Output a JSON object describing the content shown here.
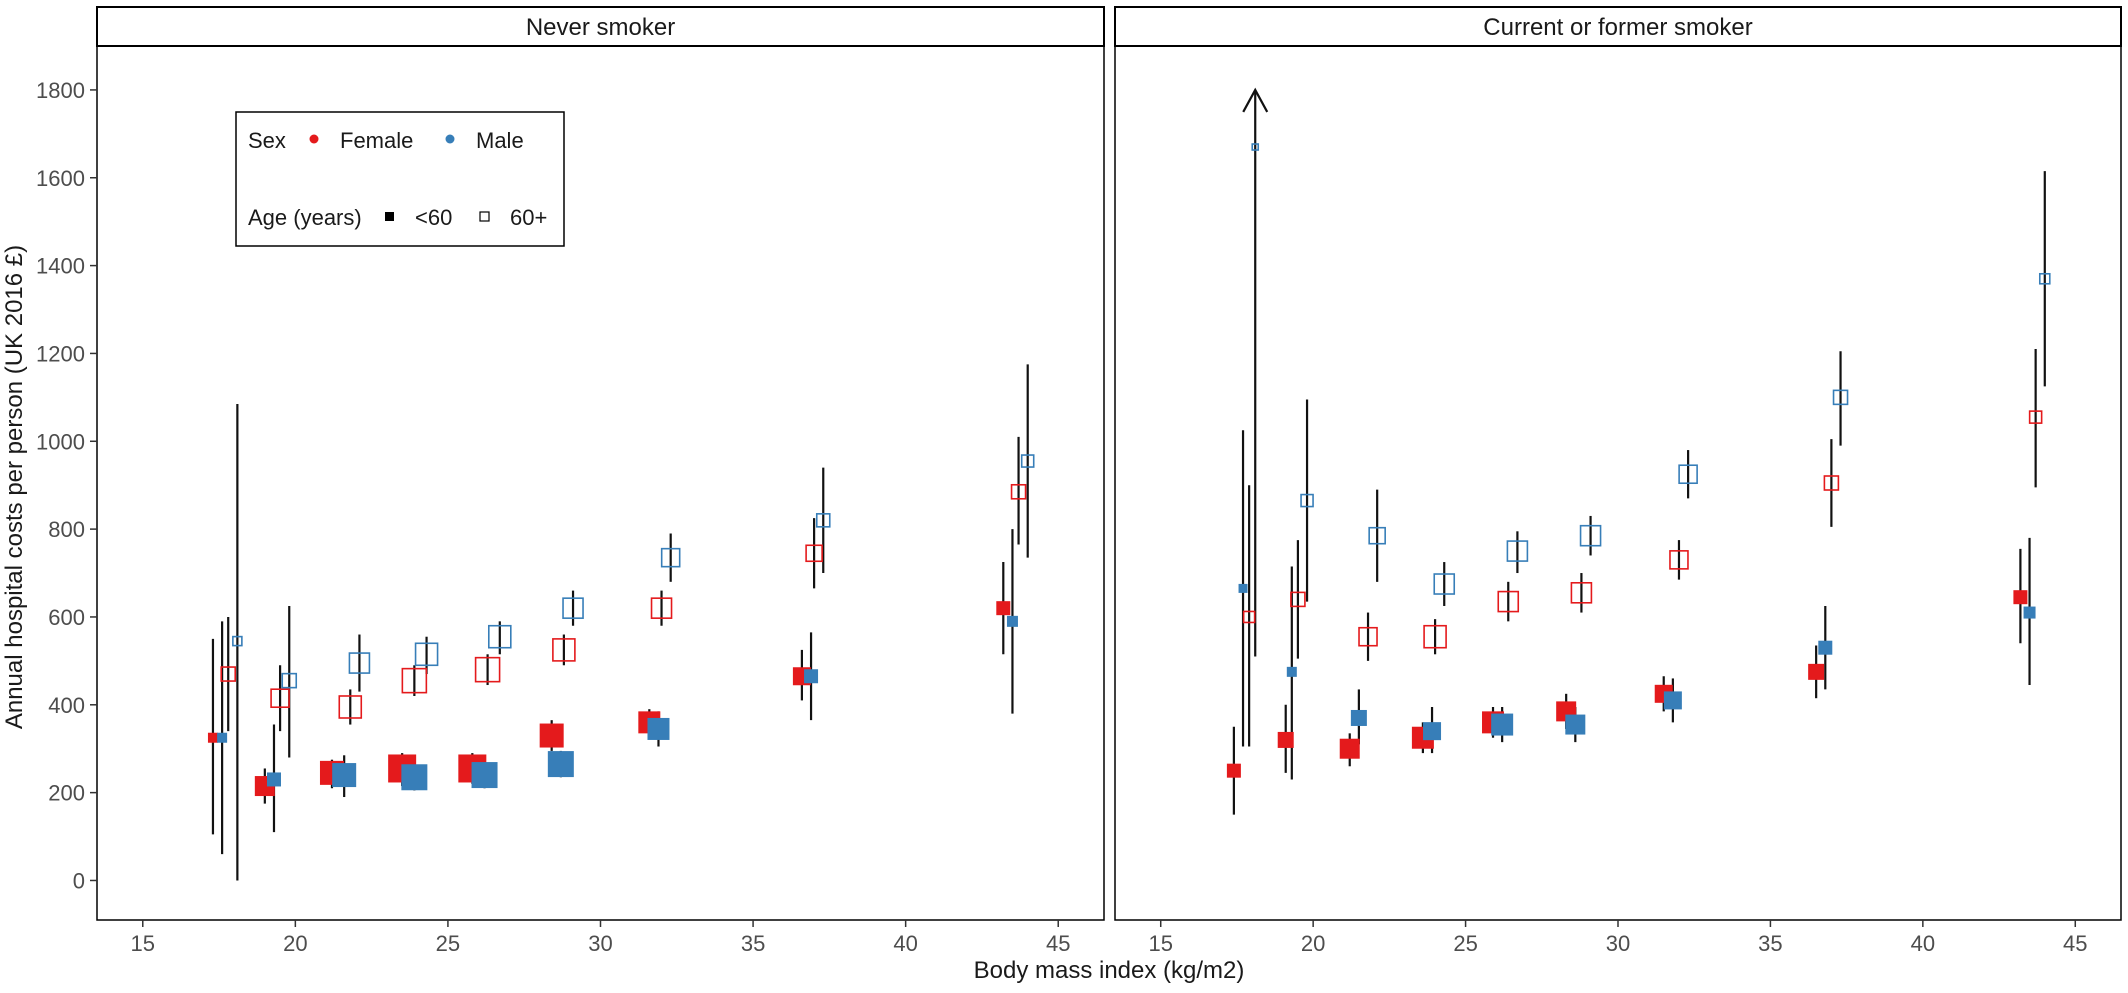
{
  "chart_data": {
    "type": "scatter",
    "xlabel": "Body mass index (kg/m2)",
    "ylabel": "Annual hospital costs per person (UK 2016 £)",
    "xlim": [
      13.5,
      46.5
    ],
    "ylim": [
      -90,
      1900
    ],
    "x_ticks": [
      15,
      20,
      25,
      30,
      35,
      40,
      45
    ],
    "y_ticks": [
      0,
      200,
      400,
      600,
      800,
      1000,
      1200,
      1400,
      1600,
      1800
    ],
    "grid": false,
    "colors": {
      "Female": "#e41a1c",
      "Male": "#377eb8"
    },
    "legend": {
      "placement": "inside-top-left",
      "sex_title": "Sex",
      "sex_items": [
        "Female",
        "Male"
      ],
      "age_title": "Age (years)",
      "age_items": [
        "<60",
        "60+"
      ],
      "age_shapes": [
        "filled-square",
        "open-square"
      ]
    },
    "panels": [
      {
        "title": "Never smoker",
        "points": [
          {
            "sex": "Female",
            "age": "<60",
            "x": 17.3,
            "y": 325,
            "lo": 105,
            "hi": 550,
            "size": 10
          },
          {
            "sex": "Male",
            "age": "<60",
            "x": 17.6,
            "y": 325,
            "lo": 60,
            "hi": 590,
            "size": 10
          },
          {
            "sex": "Female",
            "age": "60+",
            "x": 17.8,
            "y": 470,
            "lo": 340,
            "hi": 600,
            "size": 14
          },
          {
            "sex": "Male",
            "age": "60+",
            "x": 18.1,
            "y": 545,
            "lo": 0,
            "hi": 1085,
            "size": 9
          },
          {
            "sex": "Female",
            "age": "<60",
            "x": 19.0,
            "y": 215,
            "lo": 175,
            "hi": 255,
            "size": 20
          },
          {
            "sex": "Male",
            "age": "<60",
            "x": 19.3,
            "y": 230,
            "lo": 110,
            "hi": 355,
            "size": 14
          },
          {
            "sex": "Female",
            "age": "60+",
            "x": 19.5,
            "y": 415,
            "lo": 340,
            "hi": 490,
            "size": 18
          },
          {
            "sex": "Male",
            "age": "60+",
            "x": 19.8,
            "y": 455,
            "lo": 280,
            "hi": 625,
            "size": 14
          },
          {
            "sex": "Female",
            "age": "<60",
            "x": 21.2,
            "y": 245,
            "lo": 210,
            "hi": 275,
            "size": 24
          },
          {
            "sex": "Male",
            "age": "<60",
            "x": 21.6,
            "y": 240,
            "lo": 190,
            "hi": 285,
            "size": 24
          },
          {
            "sex": "Female",
            "age": "60+",
            "x": 21.8,
            "y": 395,
            "lo": 355,
            "hi": 435,
            "size": 22
          },
          {
            "sex": "Male",
            "age": "60+",
            "x": 22.1,
            "y": 495,
            "lo": 430,
            "hi": 560,
            "size": 20
          },
          {
            "sex": "Female",
            "age": "<60",
            "x": 23.5,
            "y": 255,
            "lo": 215,
            "hi": 290,
            "size": 28
          },
          {
            "sex": "Male",
            "age": "<60",
            "x": 23.9,
            "y": 235,
            "lo": 205,
            "hi": 270,
            "size": 26
          },
          {
            "sex": "Female",
            "age": "60+",
            "x": 23.9,
            "y": 455,
            "lo": 420,
            "hi": 490,
            "size": 24
          },
          {
            "sex": "Male",
            "age": "60+",
            "x": 24.3,
            "y": 515,
            "lo": 470,
            "hi": 555,
            "size": 22
          },
          {
            "sex": "Female",
            "age": "<60",
            "x": 25.8,
            "y": 255,
            "lo": 220,
            "hi": 290,
            "size": 28
          },
          {
            "sex": "Male",
            "age": "<60",
            "x": 26.2,
            "y": 240,
            "lo": 210,
            "hi": 270,
            "size": 26
          },
          {
            "sex": "Female",
            "age": "60+",
            "x": 26.3,
            "y": 480,
            "lo": 445,
            "hi": 515,
            "size": 24
          },
          {
            "sex": "Male",
            "age": "60+",
            "x": 26.7,
            "y": 555,
            "lo": 515,
            "hi": 590,
            "size": 22
          },
          {
            "sex": "Female",
            "age": "<60",
            "x": 28.4,
            "y": 330,
            "lo": 295,
            "hi": 365,
            "size": 24
          },
          {
            "sex": "Male",
            "age": "<60",
            "x": 28.7,
            "y": 265,
            "lo": 235,
            "hi": 295,
            "size": 26
          },
          {
            "sex": "Female",
            "age": "60+",
            "x": 28.8,
            "y": 525,
            "lo": 490,
            "hi": 560,
            "size": 22
          },
          {
            "sex": "Male",
            "age": "60+",
            "x": 29.1,
            "y": 620,
            "lo": 580,
            "hi": 660,
            "size": 20
          },
          {
            "sex": "Female",
            "age": "<60",
            "x": 31.6,
            "y": 360,
            "lo": 330,
            "hi": 390,
            "size": 22
          },
          {
            "sex": "Male",
            "age": "<60",
            "x": 31.9,
            "y": 345,
            "lo": 305,
            "hi": 385,
            "size": 22
          },
          {
            "sex": "Female",
            "age": "60+",
            "x": 32.0,
            "y": 620,
            "lo": 580,
            "hi": 660,
            "size": 20
          },
          {
            "sex": "Male",
            "age": "60+",
            "x": 32.3,
            "y": 735,
            "lo": 680,
            "hi": 790,
            "size": 18
          },
          {
            "sex": "Female",
            "age": "<60",
            "x": 36.6,
            "y": 465,
            "lo": 410,
            "hi": 525,
            "size": 18
          },
          {
            "sex": "Male",
            "age": "<60",
            "x": 36.9,
            "y": 465,
            "lo": 365,
            "hi": 565,
            "size": 14
          },
          {
            "sex": "Female",
            "age": "60+",
            "x": 37.0,
            "y": 745,
            "lo": 665,
            "hi": 825,
            "size": 16
          },
          {
            "sex": "Male",
            "age": "60+",
            "x": 37.3,
            "y": 820,
            "lo": 700,
            "hi": 940,
            "size": 13
          },
          {
            "sex": "Female",
            "age": "<60",
            "x": 43.2,
            "y": 620,
            "lo": 515,
            "hi": 725,
            "size": 14
          },
          {
            "sex": "Male",
            "age": "<60",
            "x": 43.5,
            "y": 590,
            "lo": 380,
            "hi": 800,
            "size": 11
          },
          {
            "sex": "Female",
            "age": "60+",
            "x": 43.7,
            "y": 885,
            "lo": 765,
            "hi": 1010,
            "size": 14
          },
          {
            "sex": "Male",
            "age": "60+",
            "x": 44.0,
            "y": 955,
            "lo": 735,
            "hi": 1175,
            "size": 12
          }
        ]
      },
      {
        "title": "Current or former smoker",
        "points": [
          {
            "sex": "Female",
            "age": "<60",
            "x": 17.4,
            "y": 250,
            "lo": 150,
            "hi": 350,
            "size": 14
          },
          {
            "sex": "Male",
            "age": "<60",
            "x": 17.7,
            "y": 665,
            "lo": 305,
            "hi": 1025,
            "size": 9
          },
          {
            "sex": "Female",
            "age": "60+",
            "x": 17.9,
            "y": 600,
            "lo": 305,
            "hi": 900,
            "size": 11
          },
          {
            "sex": "Male",
            "age": "60+",
            "x": 18.1,
            "y": 1670,
            "lo": 510,
            "hi": 1800,
            "size": 6,
            "arrow": true
          },
          {
            "sex": "Female",
            "age": "<60",
            "x": 19.1,
            "y": 320,
            "lo": 245,
            "hi": 400,
            "size": 16
          },
          {
            "sex": "Male",
            "age": "<60",
            "x": 19.3,
            "y": 475,
            "lo": 230,
            "hi": 715,
            "size": 10
          },
          {
            "sex": "Female",
            "age": "60+",
            "x": 19.5,
            "y": 640,
            "lo": 505,
            "hi": 775,
            "size": 14
          },
          {
            "sex": "Male",
            "age": "60+",
            "x": 19.8,
            "y": 865,
            "lo": 635,
            "hi": 1095,
            "size": 12
          },
          {
            "sex": "Female",
            "age": "<60",
            "x": 21.2,
            "y": 300,
            "lo": 260,
            "hi": 335,
            "size": 20
          },
          {
            "sex": "Male",
            "age": "<60",
            "x": 21.5,
            "y": 370,
            "lo": 310,
            "hi": 435,
            "size": 16
          },
          {
            "sex": "Female",
            "age": "60+",
            "x": 21.8,
            "y": 555,
            "lo": 500,
            "hi": 610,
            "size": 18
          },
          {
            "sex": "Male",
            "age": "60+",
            "x": 22.1,
            "y": 785,
            "lo": 680,
            "hi": 890,
            "size": 16
          },
          {
            "sex": "Female",
            "age": "<60",
            "x": 23.6,
            "y": 325,
            "lo": 290,
            "hi": 360,
            "size": 22
          },
          {
            "sex": "Male",
            "age": "<60",
            "x": 23.9,
            "y": 340,
            "lo": 290,
            "hi": 395,
            "size": 18
          },
          {
            "sex": "Female",
            "age": "60+",
            "x": 24.0,
            "y": 555,
            "lo": 515,
            "hi": 595,
            "size": 22
          },
          {
            "sex": "Male",
            "age": "60+",
            "x": 24.3,
            "y": 675,
            "lo": 625,
            "hi": 725,
            "size": 20
          },
          {
            "sex": "Female",
            "age": "<60",
            "x": 25.9,
            "y": 360,
            "lo": 325,
            "hi": 395,
            "size": 22
          },
          {
            "sex": "Male",
            "age": "<60",
            "x": 26.2,
            "y": 355,
            "lo": 315,
            "hi": 395,
            "size": 22
          },
          {
            "sex": "Female",
            "age": "60+",
            "x": 26.4,
            "y": 635,
            "lo": 590,
            "hi": 680,
            "size": 20
          },
          {
            "sex": "Male",
            "age": "60+",
            "x": 26.7,
            "y": 750,
            "lo": 700,
            "hi": 795,
            "size": 20
          },
          {
            "sex": "Female",
            "age": "<60",
            "x": 28.3,
            "y": 385,
            "lo": 345,
            "hi": 425,
            "size": 20
          },
          {
            "sex": "Male",
            "age": "<60",
            "x": 28.6,
            "y": 355,
            "lo": 315,
            "hi": 395,
            "size": 20
          },
          {
            "sex": "Female",
            "age": "60+",
            "x": 28.8,
            "y": 655,
            "lo": 610,
            "hi": 700,
            "size": 20
          },
          {
            "sex": "Male",
            "age": "60+",
            "x": 29.1,
            "y": 785,
            "lo": 740,
            "hi": 830,
            "size": 20
          },
          {
            "sex": "Female",
            "age": "<60",
            "x": 31.5,
            "y": 425,
            "lo": 385,
            "hi": 465,
            "size": 18
          },
          {
            "sex": "Male",
            "age": "<60",
            "x": 31.8,
            "y": 410,
            "lo": 360,
            "hi": 460,
            "size": 18
          },
          {
            "sex": "Female",
            "age": "60+",
            "x": 32.0,
            "y": 730,
            "lo": 685,
            "hi": 775,
            "size": 18
          },
          {
            "sex": "Male",
            "age": "60+",
            "x": 32.3,
            "y": 925,
            "lo": 870,
            "hi": 980,
            "size": 18
          },
          {
            "sex": "Female",
            "age": "<60",
            "x": 36.5,
            "y": 475,
            "lo": 415,
            "hi": 535,
            "size": 16
          },
          {
            "sex": "Male",
            "age": "<60",
            "x": 36.8,
            "y": 530,
            "lo": 435,
            "hi": 625,
            "size": 14
          },
          {
            "sex": "Female",
            "age": "60+",
            "x": 37.0,
            "y": 905,
            "lo": 805,
            "hi": 1005,
            "size": 14
          },
          {
            "sex": "Male",
            "age": "60+",
            "x": 37.3,
            "y": 1100,
            "lo": 990,
            "hi": 1205,
            "size": 14
          },
          {
            "sex": "Female",
            "age": "<60",
            "x": 43.2,
            "y": 645,
            "lo": 540,
            "hi": 755,
            "size": 14
          },
          {
            "sex": "Male",
            "age": "<60",
            "x": 43.5,
            "y": 610,
            "lo": 445,
            "hi": 780,
            "size": 12
          },
          {
            "sex": "Female",
            "age": "60+",
            "x": 43.7,
            "y": 1055,
            "lo": 895,
            "hi": 1210,
            "size": 12
          },
          {
            "sex": "Male",
            "age": "60+",
            "x": 44.0,
            "y": 1370,
            "lo": 1125,
            "hi": 1615,
            "size": 10
          }
        ]
      }
    ]
  }
}
